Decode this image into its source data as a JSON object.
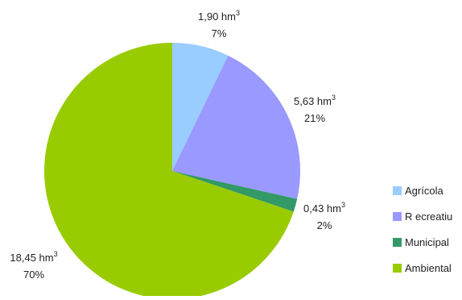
{
  "chart_data": {
    "type": "pie",
    "title": "",
    "slices": [
      {
        "name": "Agrícola",
        "value": 1.9,
        "value_label": "1,90 hm",
        "unit_sup": "3",
        "percent_label": "7%",
        "color": "#99ccff"
      },
      {
        "name": "R ecreatiu",
        "value": 5.63,
        "value_label": "5,63 hm",
        "unit_sup": "3",
        "percent_label": "21%",
        "color": "#9999ff"
      },
      {
        "name": "Municipal",
        "value": 0.43,
        "value_label": "0,43 hm",
        "unit_sup": "3",
        "percent_label": "2%",
        "color": "#339966"
      },
      {
        "name": "Ambiental",
        "value": 18.45,
        "value_label": "18,45 hm",
        "unit_sup": "3",
        "percent_label": "70%",
        "color": "#99cc00"
      }
    ],
    "start_angle_deg": 0,
    "direction": "clockwise",
    "legend_position": "right"
  }
}
